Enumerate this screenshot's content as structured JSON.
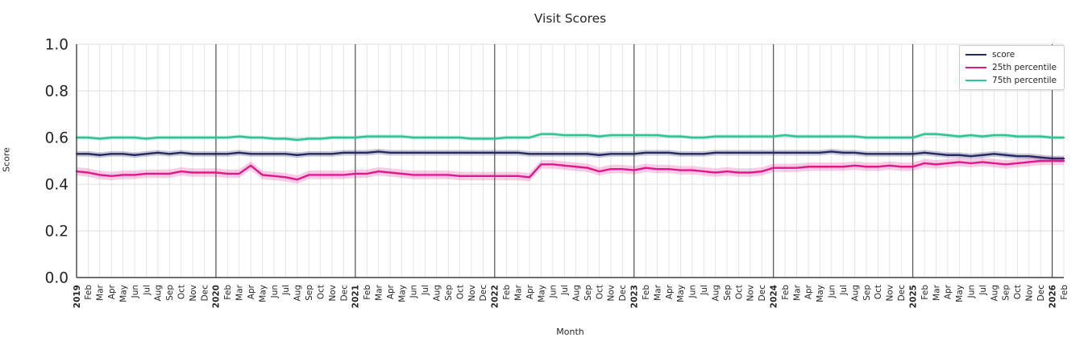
{
  "chart_data": {
    "type": "line",
    "title": "Visit Scores",
    "xlabel": "Month",
    "ylabel": "Score",
    "ylim": [
      0.0,
      1.0
    ],
    "yticks": [
      0.0,
      0.2,
      0.4,
      0.6,
      0.8,
      1.0
    ],
    "ytick_labels": [
      "0.0",
      "0.2",
      "0.4",
      "0.6",
      "0.8",
      "1.0"
    ],
    "grid": true,
    "legend_position": "upper right",
    "categories": [
      "2019",
      "Feb",
      "Mar",
      "Apr",
      "May",
      "Jun",
      "Jul",
      "Aug",
      "Sep",
      "Oct",
      "Nov",
      "Dec",
      "2020",
      "Feb",
      "Mar",
      "Apr",
      "May",
      "Jun",
      "Jul",
      "Aug",
      "Sep",
      "Oct",
      "Nov",
      "Dec",
      "2021",
      "Feb",
      "Mar",
      "Apr",
      "May",
      "Jun",
      "Jul",
      "Aug",
      "Sep",
      "Oct",
      "Nov",
      "Dec",
      "2022",
      "Feb",
      "Mar",
      "Apr",
      "May",
      "Jun",
      "Jul",
      "Aug",
      "Sep",
      "Oct",
      "Nov",
      "Dec",
      "2023",
      "Feb",
      "Mar",
      "Apr",
      "May",
      "Jun",
      "Jul",
      "Aug",
      "Sep",
      "Oct",
      "Nov",
      "Dec",
      "2024",
      "Feb",
      "Mar",
      "Apr",
      "May",
      "Jun",
      "Jul",
      "Aug",
      "Sep",
      "Oct",
      "Nov",
      "Dec",
      "2025",
      "Feb",
      "Mar",
      "Apr",
      "May",
      "Jun",
      "Jul",
      "Aug",
      "Sep",
      "Oct",
      "Nov",
      "Dec",
      "2026",
      "Feb"
    ],
    "series": [
      {
        "name": "score",
        "color": "#252a63",
        "band_halfwidth": 0.012,
        "band_opacity": 0.25,
        "values": [
          0.53,
          0.53,
          0.525,
          0.53,
          0.53,
          0.525,
          0.53,
          0.535,
          0.53,
          0.535,
          0.53,
          0.53,
          0.53,
          0.53,
          0.535,
          0.53,
          0.53,
          0.53,
          0.53,
          0.525,
          0.53,
          0.53,
          0.53,
          0.535,
          0.535,
          0.535,
          0.54,
          0.535,
          0.535,
          0.535,
          0.535,
          0.535,
          0.535,
          0.535,
          0.535,
          0.535,
          0.535,
          0.535,
          0.535,
          0.53,
          0.53,
          0.53,
          0.53,
          0.53,
          0.53,
          0.525,
          0.53,
          0.53,
          0.53,
          0.535,
          0.535,
          0.535,
          0.53,
          0.53,
          0.53,
          0.535,
          0.535,
          0.535,
          0.535,
          0.535,
          0.535,
          0.535,
          0.535,
          0.535,
          0.535,
          0.54,
          0.535,
          0.535,
          0.53,
          0.53,
          0.53,
          0.53,
          0.53,
          0.535,
          0.53,
          0.525,
          0.525,
          0.52,
          0.525,
          0.53,
          0.525,
          0.52,
          0.52,
          0.515,
          0.51,
          0.51
        ]
      },
      {
        "name": "25th percentile",
        "color": "#e2178c",
        "band_halfwidth": 0.018,
        "band_opacity": 0.22,
        "values": [
          0.455,
          0.45,
          0.44,
          0.435,
          0.44,
          0.44,
          0.445,
          0.445,
          0.445,
          0.455,
          0.45,
          0.45,
          0.45,
          0.445,
          0.445,
          0.48,
          0.44,
          0.435,
          0.43,
          0.42,
          0.44,
          0.44,
          0.44,
          0.44,
          0.445,
          0.445,
          0.455,
          0.45,
          0.445,
          0.44,
          0.44,
          0.44,
          0.44,
          0.435,
          0.435,
          0.435,
          0.435,
          0.435,
          0.435,
          0.43,
          0.485,
          0.485,
          0.48,
          0.475,
          0.47,
          0.455,
          0.465,
          0.465,
          0.46,
          0.47,
          0.465,
          0.465,
          0.46,
          0.46,
          0.455,
          0.45,
          0.455,
          0.45,
          0.45,
          0.455,
          0.47,
          0.47,
          0.47,
          0.475,
          0.475,
          0.475,
          0.475,
          0.48,
          0.475,
          0.475,
          0.48,
          0.475,
          0.475,
          0.49,
          0.485,
          0.49,
          0.495,
          0.49,
          0.495,
          0.49,
          0.485,
          0.49,
          0.495,
          0.5,
          0.5,
          0.5
        ]
      },
      {
        "name": "75th percentile",
        "color": "#2fc294",
        "band_halfwidth": 0.008,
        "band_opacity": 0.25,
        "values": [
          0.6,
          0.6,
          0.595,
          0.6,
          0.6,
          0.6,
          0.595,
          0.6,
          0.6,
          0.6,
          0.6,
          0.6,
          0.6,
          0.6,
          0.605,
          0.6,
          0.6,
          0.595,
          0.595,
          0.59,
          0.595,
          0.595,
          0.6,
          0.6,
          0.6,
          0.605,
          0.605,
          0.605,
          0.605,
          0.6,
          0.6,
          0.6,
          0.6,
          0.6,
          0.595,
          0.595,
          0.595,
          0.6,
          0.6,
          0.6,
          0.615,
          0.615,
          0.61,
          0.61,
          0.61,
          0.605,
          0.61,
          0.61,
          0.61,
          0.61,
          0.61,
          0.605,
          0.605,
          0.6,
          0.6,
          0.605,
          0.605,
          0.605,
          0.605,
          0.605,
          0.605,
          0.61,
          0.605,
          0.605,
          0.605,
          0.605,
          0.605,
          0.605,
          0.6,
          0.6,
          0.6,
          0.6,
          0.6,
          0.615,
          0.615,
          0.61,
          0.605,
          0.61,
          0.605,
          0.61,
          0.61,
          0.605,
          0.605,
          0.605,
          0.6,
          0.6
        ]
      }
    ],
    "colors": {
      "grid_minor": "#dddddd",
      "grid_year": "#404040",
      "spine": "#404040",
      "tick_text": "#262626"
    }
  }
}
